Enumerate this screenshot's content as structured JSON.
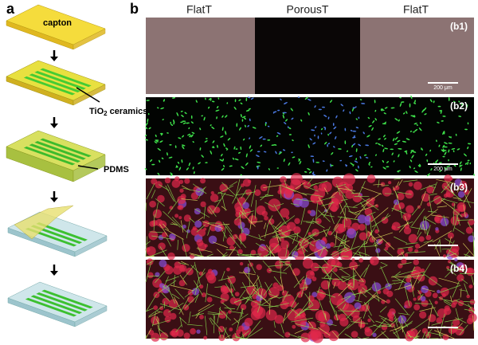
{
  "labels": {
    "a": "a",
    "b": "b"
  },
  "steps": {
    "capton": "capton",
    "ceramics": {
      "base": "TiO",
      "sub": "2",
      "rest": " ceramics"
    },
    "pdms": "PDMS"
  },
  "header": [
    "FlatT",
    "PorousT",
    "FlatT"
  ],
  "panels": [
    {
      "label": "(b1)",
      "scale": "200 μm"
    },
    {
      "label": "(b2)",
      "scale": "200 μm"
    },
    {
      "label": "(b3)"
    },
    {
      "label": "(b4)"
    }
  ]
}
